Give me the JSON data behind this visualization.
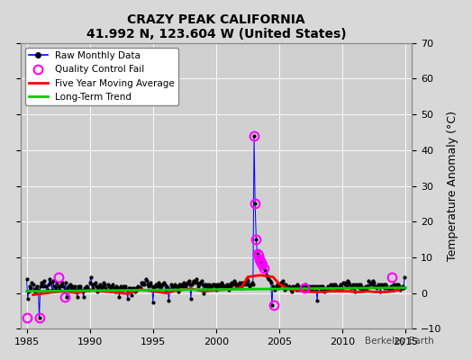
{
  "title": "CRAZY PEAK CALIFORNIA",
  "subtitle": "41.992 N, 123.604 W (United States)",
  "ylabel_right": "Temperature Anomaly (°C)",
  "watermark": "Berkeley Earth",
  "xlim": [
    1984.5,
    2015.5
  ],
  "ylim": [
    -10,
    70
  ],
  "yticks": [
    -10,
    0,
    10,
    20,
    30,
    40,
    50,
    60,
    70
  ],
  "xticks": [
    1985,
    1990,
    1995,
    2000,
    2005,
    2010,
    2015
  ],
  "background_color": "#e8e8e8",
  "plot_bg_color": "#dcdcdc",
  "raw_line_color": "#0000ff",
  "raw_dot_color": "#000000",
  "qc_fail_color": "#ff00ff",
  "moving_avg_color": "#ff0000",
  "trend_color": "#00cc00",
  "legend_items": [
    {
      "label": "Raw Monthly Data",
      "color": "#0000ff",
      "marker": "o",
      "markercolor": "#000000"
    },
    {
      "label": "Quality Control Fail",
      "color": "#ff00ff",
      "marker": "o",
      "markercolor": "#ff00ff"
    },
    {
      "label": "Five Year Moving Average",
      "color": "#ff0000"
    },
    {
      "label": "Long-Term Trend",
      "color": "#00cc00"
    }
  ],
  "raw_data_x": [
    1985.0,
    1985.083,
    1985.167,
    1985.25,
    1985.333,
    1985.417,
    1985.5,
    1985.583,
    1985.667,
    1985.75,
    1985.833,
    1985.917,
    1986.0,
    1986.083,
    1986.167,
    1986.25,
    1986.333,
    1986.417,
    1986.5,
    1986.583,
    1986.667,
    1986.75,
    1986.833,
    1986.917,
    1987.0,
    1987.083,
    1987.167,
    1987.25,
    1987.333,
    1987.417,
    1987.5,
    1987.583,
    1987.667,
    1987.75,
    1987.833,
    1987.917,
    1988.0,
    1988.083,
    1988.167,
    1988.25,
    1988.333,
    1988.417,
    1988.5,
    1988.583,
    1988.667,
    1988.75,
    1988.833,
    1988.917,
    1989.0,
    1989.083,
    1989.167,
    1989.25,
    1989.333,
    1989.417,
    1989.5,
    1989.583,
    1989.667,
    1989.75,
    1989.833,
    1989.917,
    1990.0,
    1990.083,
    1990.167,
    1990.25,
    1990.333,
    1990.417,
    1990.5,
    1990.583,
    1990.667,
    1990.75,
    1990.833,
    1990.917,
    1991.0,
    1991.083,
    1991.167,
    1991.25,
    1991.333,
    1991.417,
    1991.5,
    1991.583,
    1991.667,
    1991.75,
    1991.833,
    1991.917,
    1992.0,
    1992.083,
    1992.167,
    1992.25,
    1992.333,
    1992.417,
    1992.5,
    1992.583,
    1992.667,
    1992.75,
    1992.833,
    1992.917,
    1993.0,
    1993.083,
    1993.167,
    1993.25,
    1993.333,
    1993.417,
    1993.5,
    1993.583,
    1993.667,
    1993.75,
    1993.833,
    1993.917,
    1994.0,
    1994.083,
    1994.167,
    1994.25,
    1994.333,
    1994.417,
    1994.5,
    1994.583,
    1994.667,
    1994.75,
    1994.833,
    1994.917,
    1995.0,
    1995.083,
    1995.167,
    1995.25,
    1995.333,
    1995.417,
    1995.5,
    1995.583,
    1995.667,
    1995.75,
    1995.833,
    1995.917,
    1996.0,
    1996.083,
    1996.167,
    1996.25,
    1996.333,
    1996.417,
    1996.5,
    1996.583,
    1996.667,
    1996.75,
    1996.833,
    1996.917,
    1997.0,
    1997.083,
    1997.167,
    1997.25,
    1997.333,
    1997.417,
    1997.5,
    1997.583,
    1997.667,
    1997.75,
    1997.833,
    1997.917,
    1998.0,
    1998.083,
    1998.167,
    1998.25,
    1998.333,
    1998.417,
    1998.5,
    1998.583,
    1998.667,
    1998.75,
    1998.833,
    1998.917,
    1999.0,
    1999.083,
    1999.167,
    1999.25,
    1999.333,
    1999.417,
    1999.5,
    1999.583,
    1999.667,
    1999.75,
    1999.833,
    1999.917,
    2000.0,
    2000.083,
    2000.167,
    2000.25,
    2000.333,
    2000.417,
    2000.5,
    2000.583,
    2000.667,
    2000.75,
    2000.833,
    2000.917,
    2001.0,
    2001.083,
    2001.167,
    2001.25,
    2001.333,
    2001.417,
    2001.5,
    2001.583,
    2001.667,
    2001.75,
    2001.833,
    2001.917,
    2002.0,
    2002.083,
    2002.167,
    2002.25,
    2002.333,
    2002.417,
    2002.5,
    2002.583,
    2002.667,
    2002.75,
    2002.833,
    2002.917,
    2003.0,
    2003.083,
    2003.167,
    2003.25,
    2003.333,
    2003.417,
    2003.5,
    2003.583,
    2003.667,
    2003.75,
    2003.833,
    2003.917,
    2004.0,
    2004.083,
    2004.167,
    2004.25,
    2004.333,
    2004.417,
    2004.5,
    2004.583,
    2004.667,
    2004.75,
    2004.833,
    2004.917,
    2005.0,
    2005.083,
    2005.167,
    2005.25,
    2005.333,
    2005.417,
    2005.5,
    2005.583,
    2005.667,
    2005.75,
    2005.833,
    2005.917,
    2006.0,
    2006.083,
    2006.167,
    2006.25,
    2006.333,
    2006.417,
    2006.5,
    2006.583,
    2006.667,
    2006.75,
    2006.833,
    2006.917,
    2007.0,
    2007.083,
    2007.167,
    2007.25,
    2007.333,
    2007.417,
    2007.5,
    2007.583,
    2007.667,
    2007.75,
    2007.833,
    2007.917,
    2008.0,
    2008.083,
    2008.167,
    2008.25,
    2008.333,
    2008.417,
    2008.5,
    2008.583,
    2008.667,
    2008.75,
    2008.833,
    2008.917,
    2009.0,
    2009.083,
    2009.167,
    2009.25,
    2009.333,
    2009.417,
    2009.5,
    2009.583,
    2009.667,
    2009.75,
    2009.833,
    2009.917,
    2010.0,
    2010.083,
    2010.167,
    2010.25,
    2010.333,
    2010.417,
    2010.5,
    2010.583,
    2010.667,
    2010.75,
    2010.833,
    2010.917,
    2011.0,
    2011.083,
    2011.167,
    2011.25,
    2011.333,
    2011.417,
    2011.5,
    2011.583,
    2011.667,
    2011.75,
    2011.833,
    2011.917,
    2012.0,
    2012.083,
    2012.167,
    2012.25,
    2012.333,
    2012.417,
    2012.5,
    2012.583,
    2012.667,
    2012.75,
    2012.833,
    2012.917,
    2013.0,
    2013.083,
    2013.167,
    2013.25,
    2013.333,
    2013.417,
    2013.5,
    2013.583,
    2013.667,
    2013.75,
    2013.833,
    2013.917,
    2014.0,
    2014.083,
    2014.167,
    2014.25,
    2014.333,
    2014.417,
    2014.5,
    2014.583,
    2014.667,
    2014.75,
    2014.833,
    2014.917
  ],
  "raw_data_y": [
    4.0,
    -1.5,
    0.5,
    2.0,
    1.5,
    3.0,
    2.5,
    1.0,
    0.5,
    1.5,
    2.0,
    1.0,
    -7.0,
    2.0,
    3.0,
    2.5,
    2.0,
    3.5,
    2.0,
    0.5,
    1.0,
    2.5,
    4.0,
    3.0,
    1.0,
    3.5,
    2.0,
    2.0,
    1.5,
    3.0,
    2.0,
    1.0,
    2.0,
    2.5,
    3.0,
    2.0,
    1.0,
    3.0,
    -1.0,
    1.5,
    2.0,
    2.5,
    1.5,
    2.0,
    1.0,
    1.5,
    2.0,
    1.0,
    -1.0,
    2.0,
    1.5,
    2.0,
    1.0,
    0.5,
    -1.0,
    1.5,
    1.0,
    2.0,
    1.5,
    1.0,
    3.0,
    4.5,
    2.5,
    1.5,
    2.5,
    3.0,
    2.0,
    0.5,
    1.5,
    2.0,
    2.5,
    1.5,
    2.0,
    3.0,
    2.5,
    1.5,
    1.0,
    2.5,
    2.0,
    1.0,
    1.5,
    2.0,
    2.5,
    1.5,
    0.5,
    2.0,
    1.0,
    1.5,
    -1.0,
    2.0,
    1.5,
    1.0,
    2.0,
    1.5,
    2.0,
    1.0,
    -1.5,
    1.5,
    1.0,
    1.5,
    -0.5,
    1.5,
    1.0,
    0.5,
    1.5,
    1.0,
    2.0,
    1.5,
    1.5,
    3.0,
    2.5,
    3.0,
    2.5,
    4.0,
    3.5,
    2.5,
    2.0,
    2.5,
    3.0,
    2.0,
    -2.5,
    1.5,
    2.0,
    2.5,
    2.0,
    3.0,
    2.5,
    1.5,
    2.0,
    2.5,
    3.0,
    2.5,
    0.5,
    2.0,
    1.5,
    -2.0,
    1.0,
    2.5,
    2.0,
    1.5,
    2.0,
    2.5,
    2.0,
    1.5,
    0.5,
    2.5,
    2.0,
    2.5,
    2.0,
    3.0,
    2.5,
    2.0,
    2.5,
    3.0,
    3.5,
    2.5,
    -1.5,
    2.5,
    3.0,
    3.5,
    3.0,
    4.0,
    3.0,
    2.0,
    2.5,
    3.0,
    3.5,
    2.5,
    0.0,
    2.5,
    2.0,
    2.5,
    1.5,
    2.5,
    2.0,
    1.5,
    2.0,
    2.5,
    2.5,
    2.0,
    1.0,
    2.5,
    2.0,
    2.5,
    2.0,
    3.0,
    2.5,
    2.0,
    1.5,
    2.0,
    2.5,
    2.0,
    1.0,
    2.5,
    2.0,
    3.0,
    2.5,
    3.5,
    3.0,
    2.5,
    2.0,
    2.5,
    3.0,
    2.5,
    1.5,
    3.0,
    2.5,
    3.0,
    2.5,
    4.0,
    3.5,
    2.5,
    2.0,
    2.5,
    3.0,
    2.5,
    44.0,
    25.0,
    15.0,
    11.0,
    10.5,
    9.5,
    9.0,
    8.5,
    8.0,
    7.0,
    6.5,
    6.0,
    5.0,
    4.5,
    4.0,
    3.5,
    3.0,
    -3.5,
    2.0,
    1.5,
    1.0,
    2.0,
    2.5,
    1.5,
    2.0,
    2.5,
    3.0,
    3.5,
    2.5,
    1.0,
    2.5,
    2.0,
    1.5,
    2.0,
    1.5,
    1.0,
    0.5,
    2.0,
    1.5,
    2.0,
    1.0,
    2.5,
    2.0,
    1.0,
    1.5,
    2.0,
    1.5,
    1.0,
    1.0,
    2.5,
    2.0,
    1.5,
    1.0,
    2.0,
    1.5,
    1.0,
    2.0,
    1.5,
    2.0,
    1.0,
    -2.0,
    2.0,
    1.5,
    2.0,
    1.0,
    2.0,
    1.5,
    0.5,
    1.0,
    1.5,
    2.0,
    1.0,
    1.0,
    2.5,
    2.0,
    2.5,
    1.5,
    2.5,
    2.0,
    1.5,
    1.0,
    2.0,
    2.5,
    1.5,
    1.5,
    3.0,
    2.5,
    3.0,
    2.0,
    3.5,
    3.0,
    2.5,
    1.5,
    2.0,
    2.5,
    1.5,
    0.5,
    2.5,
    2.0,
    2.5,
    1.5,
    2.5,
    2.0,
    1.0,
    1.5,
    1.5,
    2.0,
    1.0,
    2.0,
    3.5,
    2.5,
    3.0,
    2.5,
    3.5,
    3.0,
    2.0,
    1.5,
    2.0,
    2.5,
    2.0,
    0.5,
    2.5,
    2.0,
    2.5,
    1.5,
    2.5,
    2.0,
    1.5,
    1.0,
    1.5,
    2.0,
    1.0,
    1.0,
    2.5,
    2.0,
    2.5,
    1.5,
    2.5,
    2.0,
    1.0,
    1.5,
    2.0,
    1.5,
    4.5
  ],
  "qc_fail_x": [
    1985.0,
    1986.0,
    1987.5,
    1988.0,
    2003.0,
    2003.083,
    2003.167,
    2003.25,
    2003.333,
    2003.417,
    2003.5,
    2003.583,
    2003.667,
    2003.75,
    2004.583,
    2007.0,
    2013.917
  ],
  "qc_fail_y": [
    -7.0,
    -7.0,
    4.5,
    -1.0,
    44.0,
    25.0,
    15.0,
    11.0,
    10.5,
    9.5,
    9.0,
    8.5,
    8.0,
    7.0,
    -3.5,
    1.5,
    4.5
  ],
  "moving_avg_x": [
    1985.5,
    1986.0,
    1987.0,
    1988.0,
    1989.0,
    1990.0,
    1991.0,
    1992.0,
    1993.0,
    1994.0,
    1995.0,
    1996.0,
    1997.0,
    1998.0,
    1999.0,
    2000.0,
    2001.0,
    2002.0,
    2002.5,
    2003.5,
    2004.5,
    2005.0,
    2005.5,
    2006.0,
    2006.5,
    2007.0,
    2007.5,
    2008.0,
    2008.5,
    2009.0,
    2009.5,
    2010.0,
    2010.5,
    2011.0,
    2011.5,
    2012.0,
    2012.5,
    2013.0,
    2013.5,
    2014.5
  ],
  "moving_avg_y": [
    -0.5,
    -0.3,
    0.2,
    0.5,
    0.0,
    0.8,
    0.5,
    0.2,
    -0.2,
    1.0,
    0.5,
    0.0,
    0.8,
    1.2,
    0.5,
    0.8,
    1.0,
    1.5,
    4.5,
    5.0,
    4.5,
    2.5,
    1.5,
    1.0,
    0.8,
    0.5,
    0.3,
    0.3,
    0.3,
    0.5,
    0.5,
    0.5,
    0.5,
    0.3,
    0.3,
    0.5,
    0.3,
    0.3,
    0.3,
    0.8
  ],
  "trend_x": [
    1985,
    2015
  ],
  "trend_y": [
    0.5,
    1.5
  ]
}
